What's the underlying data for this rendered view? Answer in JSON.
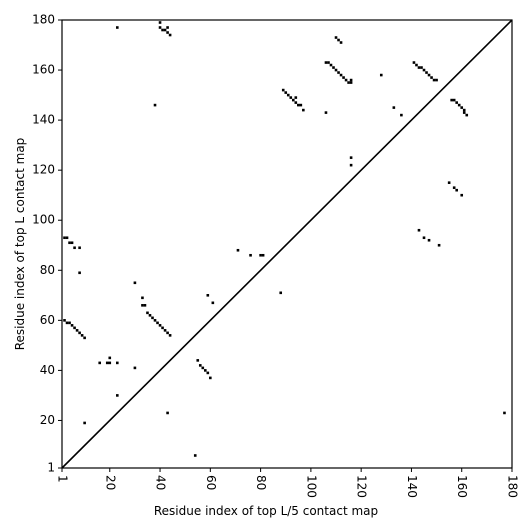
{
  "chart_data": {
    "type": "scatter",
    "x_label": "Residue index of top L/5 contact map",
    "y_label": "Residue index of top L contact map",
    "xlim": [
      1,
      180
    ],
    "ylim": [
      1,
      180
    ],
    "xticks": [
      1,
      20,
      40,
      60,
      80,
      100,
      120,
      140,
      160,
      180
    ],
    "yticks": [
      1,
      20,
      40,
      60,
      80,
      100,
      120,
      140,
      160,
      180
    ],
    "color": "#000000",
    "x": [
      23,
      40,
      40,
      41,
      42,
      43,
      43,
      44,
      38,
      110,
      111,
      112,
      106,
      107,
      108,
      109,
      110,
      111,
      112,
      113,
      114,
      115,
      116,
      116,
      106,
      116,
      116,
      128,
      133,
      136,
      141,
      142,
      143,
      144,
      145,
      146,
      147,
      148,
      149,
      150,
      89,
      90,
      91,
      92,
      93,
      94,
      95,
      96,
      97,
      94,
      156,
      157,
      158,
      159,
      160,
      161,
      162,
      161,
      155,
      157,
      158,
      160,
      143,
      145,
      147,
      151,
      2,
      3,
      4,
      5,
      6,
      8,
      8,
      2,
      3,
      4,
      5,
      6,
      7,
      8,
      9,
      10,
      30,
      33,
      33,
      34,
      35,
      36,
      37,
      38,
      39,
      40,
      41,
      42,
      43,
      44,
      16,
      19,
      20,
      20,
      23,
      30,
      23,
      10,
      43,
      55,
      56,
      57,
      58,
      59,
      60,
      59,
      61,
      71,
      76,
      80,
      81,
      88,
      54,
      177
    ],
    "values": [
      177,
      179,
      177,
      176,
      176,
      175,
      177,
      174,
      146,
      173,
      172,
      171,
      163,
      163,
      162,
      161,
      160,
      159,
      158,
      157,
      156,
      155,
      155,
      156,
      143,
      125,
      122,
      158,
      145,
      142,
      163,
      162,
      161,
      161,
      160,
      159,
      158,
      157,
      156,
      156,
      152,
      151,
      150,
      149,
      148,
      147,
      146,
      146,
      144,
      149,
      148,
      148,
      147,
      146,
      145,
      144,
      142,
      143,
      115,
      113,
      112,
      110,
      96,
      93,
      92,
      90,
      93,
      93,
      91,
      91,
      89,
      89,
      79,
      60,
      59,
      59,
      58,
      57,
      56,
      55,
      54,
      53,
      75,
      69,
      66,
      66,
      63,
      62,
      61,
      60,
      59,
      58,
      57,
      56,
      55,
      54,
      43,
      43,
      43,
      45,
      43,
      41,
      30,
      19,
      23,
      44,
      42,
      41,
      40,
      39,
      37,
      70,
      67,
      88,
      86,
      86,
      86,
      71,
      6,
      23
    ]
  }
}
